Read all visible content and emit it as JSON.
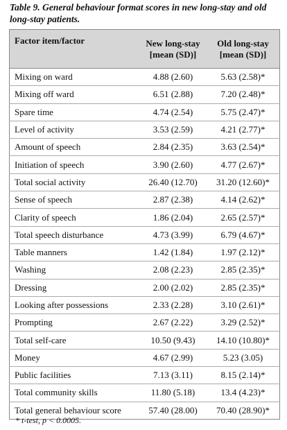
{
  "caption": "Table 9. General behaviour format scores in new long-stay and old long-stay patients.",
  "table": {
    "headers": [
      [
        "Factor item/factor"
      ],
      [
        "New long-stay",
        "[mean (SD)]"
      ],
      [
        "Old long-stay",
        "[mean (SD)]"
      ]
    ],
    "rows": [
      [
        "Mixing on ward",
        "4.88 (2.60)",
        "5.63 (2.58)*"
      ],
      [
        "Mixing off ward",
        "6.51 (2.88)",
        "7.20 (2.48)*"
      ],
      [
        "Spare time",
        "4.74 (2.54)",
        "5.75 (2.47)*"
      ],
      [
        "Level of activity",
        "3.53 (2.59)",
        "4.21 (2.77)*"
      ],
      [
        "Amount of speech",
        "2.84 (2.35)",
        "3.63 (2.54)*"
      ],
      [
        "Initiation of speech",
        "3.90 (2.60)",
        "4.77 (2.67)*"
      ],
      [
        "Total social activity",
        "26.40 (12.70)",
        "31.20 (12.60)*"
      ],
      [
        "Sense of speech",
        "2.87 (2.38)",
        "4.14 (2.62)*"
      ],
      [
        "Clarity of speech",
        "1.86 (2.04)",
        "2.65 (2.57)*"
      ],
      [
        "Total speech disturbance",
        "4.73 (3.99)",
        "6.79 (4.67)*"
      ],
      [
        "Table manners",
        "1.42 (1.84)",
        "1.97 (2.12)*"
      ],
      [
        "Washing",
        "2.08 (2.23)",
        "2.85 (2.35)*"
      ],
      [
        "Dressing",
        "2.00 (2.02)",
        "2.85 (2.35)*"
      ],
      [
        "Looking after possessions",
        "2.33 (2.28)",
        "3.10 (2.61)*"
      ],
      [
        "Prompting",
        "2.67 (2.22)",
        "3.29 (2.52)*"
      ],
      [
        "Total self-care",
        "10.50 (9.43)",
        "14.10 (10.80)*"
      ],
      [
        "Money",
        "4.67 (2.99)",
        "5.23 (3.05)"
      ],
      [
        "Public facilities",
        "7.13 (3.11)",
        "8.15 (2.14)*"
      ],
      [
        "Total community skills",
        "11.80 (5.18)",
        "13.4 (4.23)*"
      ],
      [
        "Total general behaviour score",
        "57.40 (28.00)",
        "70.40 (28.90)*"
      ]
    ]
  },
  "footnote": "* t-test, p < 0.0005."
}
